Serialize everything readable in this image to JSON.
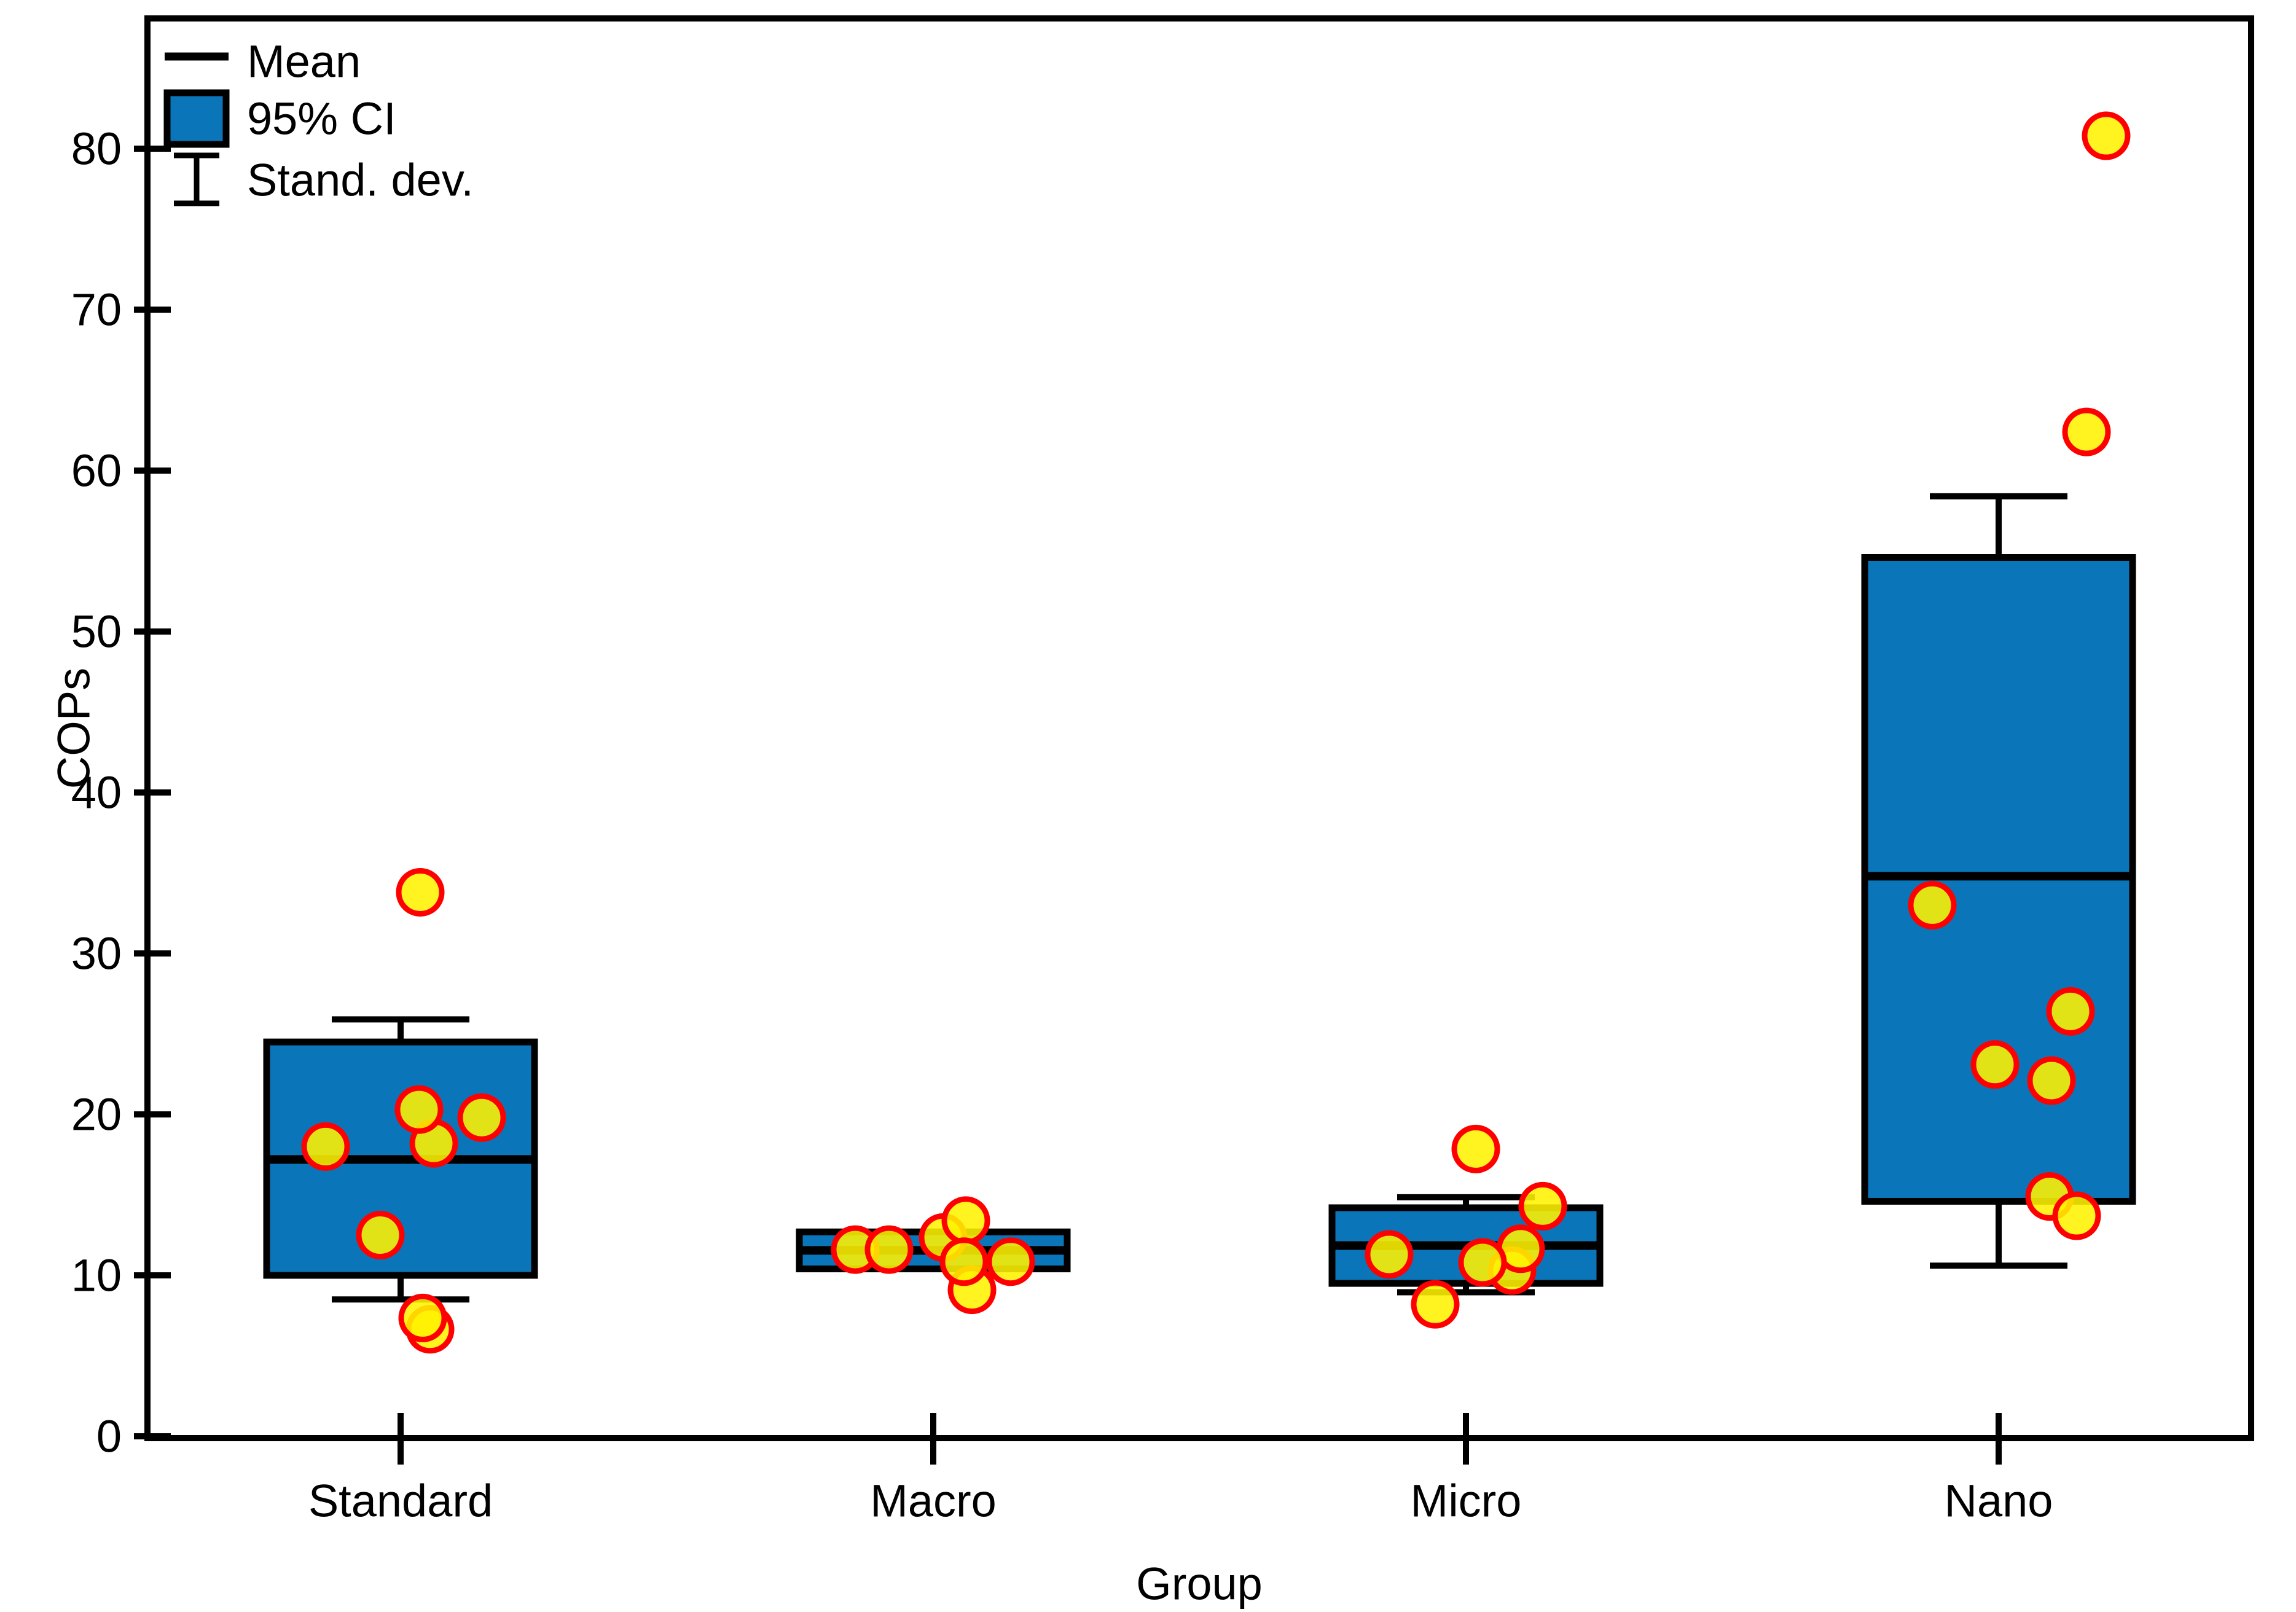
{
  "chart_data": {
    "type": "box",
    "title": "",
    "xlabel": "Group",
    "ylabel": "COPs",
    "ylim": [
      0,
      88
    ],
    "yticks": [
      0,
      10,
      20,
      30,
      40,
      50,
      60,
      70,
      80
    ],
    "grid": false,
    "legend_position": "top-left",
    "legend": [
      {
        "symbol": "mean-line",
        "label": "Mean"
      },
      {
        "symbol": "ci-box",
        "label": "95% CI"
      },
      {
        "symbol": "sd-whisker",
        "label": "Stand. dev."
      }
    ],
    "categories": [
      "Standard",
      "Macro",
      "Micro",
      "Nano"
    ],
    "series": [
      {
        "category": "Standard",
        "mean": 17.2,
        "ci95": [
          10.0,
          24.5
        ],
        "sd": [
          8.5,
          25.9
        ],
        "points_dx_value": [
          [
            48,
            6.65
          ],
          [
            36,
            7.35
          ],
          [
            -33,
            12.5
          ],
          [
            54,
            18.2
          ],
          [
            30,
            20.3
          ],
          [
            132,
            19.8
          ],
          [
            -122,
            18.0
          ],
          [
            32,
            33.8
          ]
        ]
      },
      {
        "category": "Macro",
        "mean": 11.55,
        "ci95": [
          10.4,
          12.7
        ],
        "sd": [
          10.5,
          12.6
        ],
        "points_dx_value": [
          [
            16,
            12.35
          ],
          [
            63,
            9.1
          ],
          [
            53,
            13.4
          ],
          [
            50,
            10.85
          ],
          [
            126,
            10.85
          ],
          [
            -127,
            11.6
          ],
          [
            -72,
            11.6
          ]
        ]
      },
      {
        "category": "Micro",
        "mean": 11.85,
        "ci95": [
          9.5,
          14.2
        ],
        "sd": [
          8.95,
          14.85
        ],
        "points_dx_value": [
          [
            75,
            10.3
          ],
          [
            125,
            14.3
          ],
          [
            89,
            11.65
          ],
          [
            27,
            10.8
          ],
          [
            -125,
            11.3
          ],
          [
            -50,
            8.2
          ],
          [
            16,
            17.85
          ]
        ]
      },
      {
        "category": "Nano",
        "mean": 34.8,
        "ci95": [
          14.6,
          54.6
        ],
        "sd": [
          10.6,
          58.4
        ],
        "points_dx_value": [
          [
            83,
            14.9
          ],
          [
            127,
            13.7
          ],
          [
            86,
            22.1
          ],
          [
            -6,
            23.1
          ],
          [
            117,
            26.4
          ],
          [
            -108,
            33.0
          ],
          [
            143,
            62.4
          ],
          [
            175,
            80.8
          ]
        ]
      }
    ],
    "colors": {
      "ci_fill": "#0A75B8",
      "line": "#000000",
      "point_fill": "#FFF200",
      "point_edge": "#FF0000",
      "background": "#FFFFFF"
    }
  }
}
